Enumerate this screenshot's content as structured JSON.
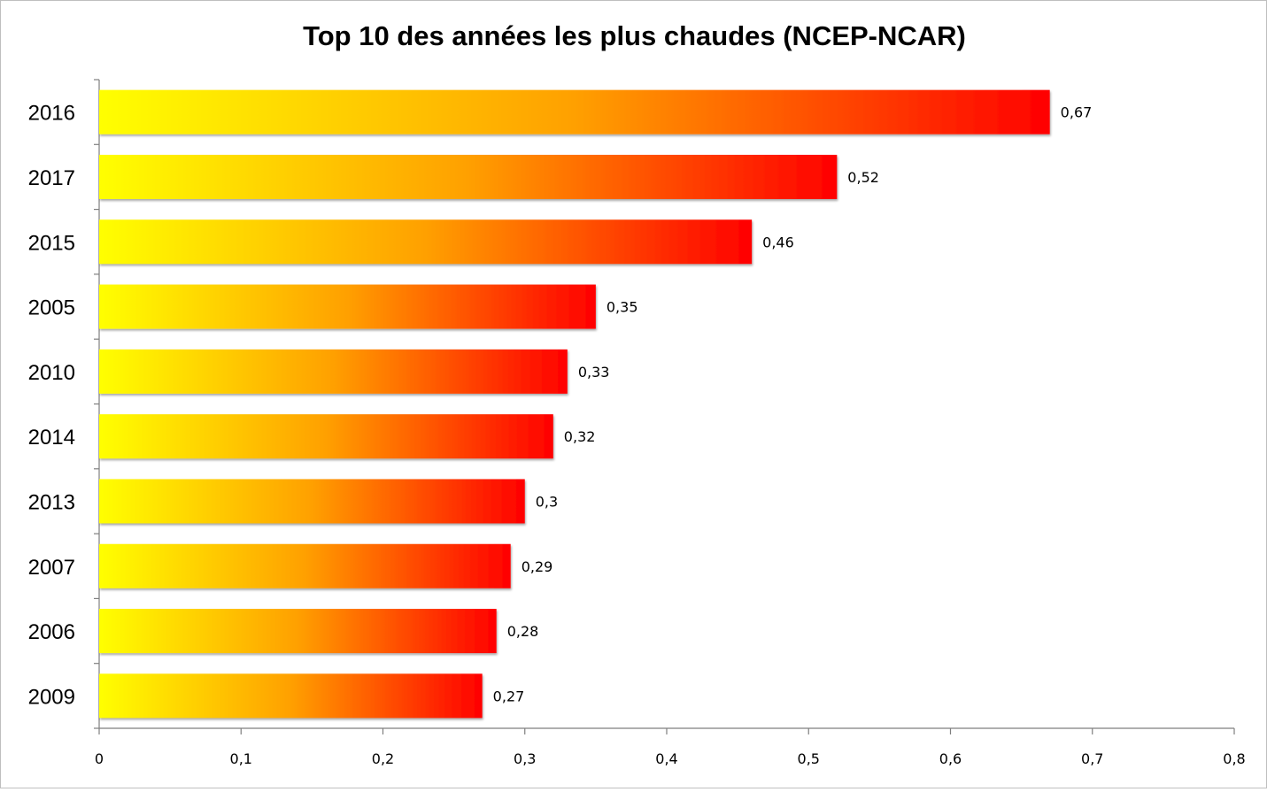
{
  "chart_data": {
    "type": "bar",
    "orientation": "horizontal",
    "title": "Top 10 des années les plus chaudes (NCEP-NCAR)",
    "categories": [
      "2016",
      "2017",
      "2015",
      "2005",
      "2010",
      "2014",
      "2013",
      "2007",
      "2006",
      "2009"
    ],
    "values": [
      0.67,
      0.52,
      0.46,
      0.35,
      0.33,
      0.32,
      0.3,
      0.29,
      0.28,
      0.27
    ],
    "value_labels": [
      "0,67",
      "0,52",
      "0,46",
      "0,35",
      "0,33",
      "0,32",
      "0,3",
      "0,29",
      "0,28",
      "0,27"
    ],
    "xticks": [
      0,
      0.1,
      0.2,
      0.3,
      0.4,
      0.5,
      0.6,
      0.7,
      0.8
    ],
    "xtick_labels": [
      "0",
      "0,1",
      "0,2",
      "0,3",
      "0,4",
      "0,5",
      "0,6",
      "0,7",
      "0,8"
    ],
    "xlim": [
      0,
      0.8
    ],
    "xlabel": "",
    "ylabel": "",
    "grid": false,
    "legend": "none",
    "bar_gradient": [
      "#ffff00",
      "#ffa000",
      "#ff0000"
    ]
  }
}
